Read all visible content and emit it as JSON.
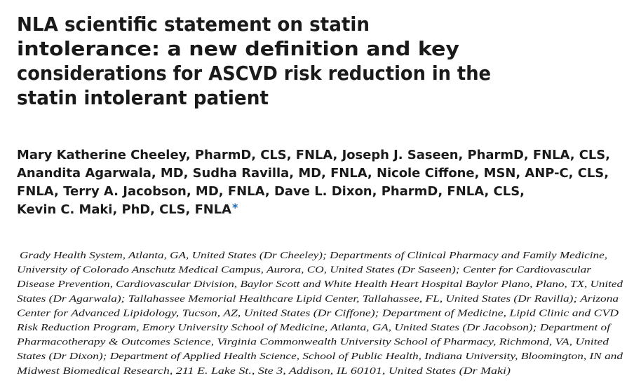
{
  "article": {
    "title_lines": [
      "NLA scientific statement on statin",
      "intolerance: a new definition and key",
      "considerations for ASCVD risk reduction in the",
      "statin intolerant patient"
    ],
    "author_lines": [
      "Mary Katherine Cheeley, PharmD, CLS, FNLA, Joseph J. Saseen, PharmD, FNLA, CLS,",
      "Anandita Agarwala, MD, Sudha Ravilla, MD, FNLA, Nicole Ciffone, MSN, ANP-C, CLS,",
      "FNLA, Terry A. Jacobson, MD, FNLA, Dave L. Dixon, PharmD, FNLA, CLS,",
      "Kevin C. Maki, PhD, CLS, FNLA"
    ],
    "corresponding_mark": "*",
    "affiliation_lines": [
      "Grady Health System, Atlanta, GA, United States (Dr Cheeley); Departments of Clinical Pharmacy and Family Medicine,",
      "University of Colorado Anschutz Medical Campus, Aurora, CO, United States (Dr Saseen); Center for Cardiovascular",
      "Disease Prevention, Cardiovascular Division, Baylor Scott and White Health Heart Hospital Baylor Plano, Plano, TX, United",
      "States (Dr Agarwala); Tallahassee Memorial Healthcare Lipid Center, Tallahassee, FL, United States (Dr Ravilla); Arizona",
      "Center for Advanced Lipidology, Tucson, AZ, United States (Dr Ciffone); Department of Medicine, Lipid Clinic and CVD",
      "Risk Reduction Program, Emory University School of Medicine, Atlanta, GA, United States (Dr Jacobson); Department of",
      "Pharmacotherapy & Outcomes Science, Virginia Commonwealth University School of Pharmacy, Richmond, VA, United",
      "States (Dr Dixon); Department of Applied Health Science, School of Public Health, Indiana University, Bloomington, IN and",
      "Midwest Biomedical Research, 211 E. Lake St., Ste 3, Addison, IL 60101, United States (Dr Maki)"
    ]
  }
}
